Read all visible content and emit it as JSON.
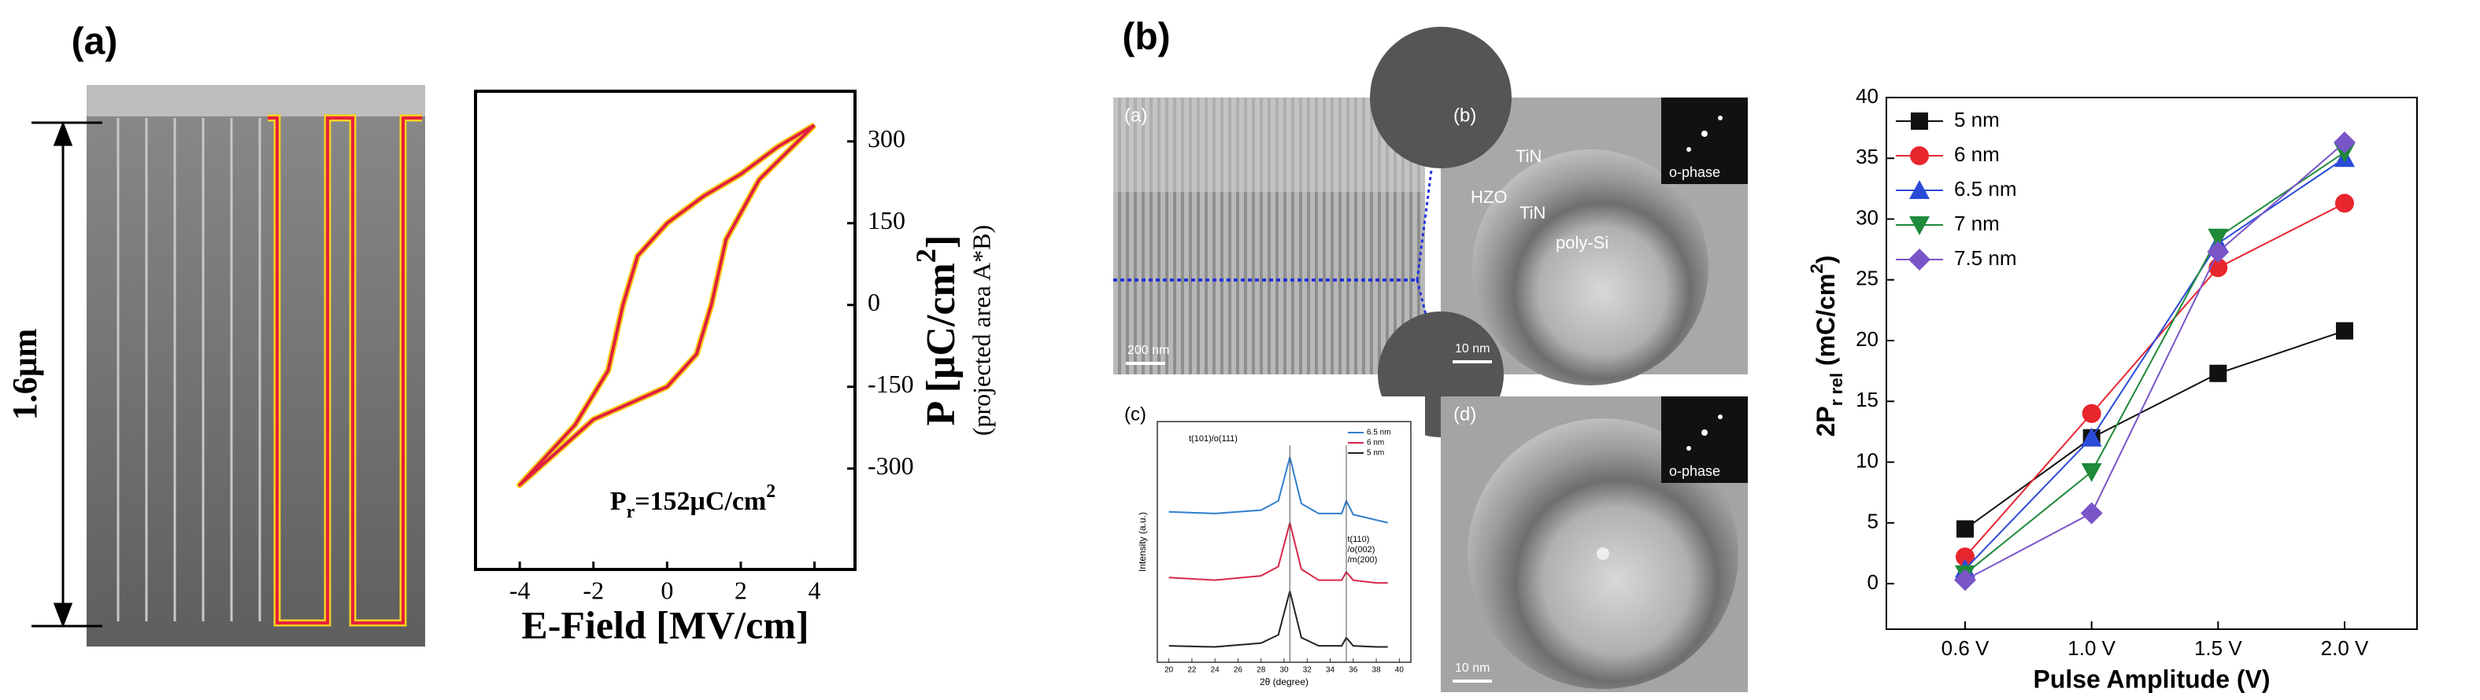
{
  "panel_labels": [
    "(a)",
    "(b)"
  ],
  "sem": {
    "scale_label": "1.6μm"
  },
  "tem": {
    "a": {
      "label": "(a)",
      "scale": "200 nm"
    },
    "b": {
      "label": "(b)",
      "layers": [
        "TiN",
        "HZO",
        "TiN",
        "poly-Si"
      ],
      "inset": "o-phase",
      "scale": "10 nm"
    },
    "d": {
      "label": "(d)",
      "inset": "o-phase",
      "scale": "10 nm"
    }
  },
  "chart_data": [
    {
      "type": "loop",
      "x_label": "E-Field [MV/cm]",
      "y_label": [
        "P [μC/cm",
        "2",
        "]"
      ],
      "y_sublabel": "(projected area A*B)",
      "annotation": [
        "P",
        "r",
        "=152μC/cm",
        "2"
      ],
      "xlim": [
        -5.2,
        5.1
      ],
      "ylim": [
        -485,
        392
      ],
      "xticks": [
        -4,
        -2,
        0,
        2,
        4
      ],
      "yticks": [
        -300,
        -150,
        0,
        150,
        300
      ],
      "y_axis_side": "right",
      "series": [
        {
          "color": "#e0203c",
          "x": [
            4,
            3,
            2,
            1,
            0,
            -0.8,
            -1.2,
            -1.6,
            -2.5,
            -4,
            -3,
            -2,
            -1,
            0,
            0.8,
            1.2,
            1.6,
            2.5,
            4
          ],
          "values": [
            330,
            290,
            240,
            200,
            150,
            90,
            0,
            -120,
            -220,
            -330,
            -270,
            -210,
            -180,
            -150,
            -90,
            0,
            120,
            230,
            330
          ]
        }
      ]
    },
    {
      "type": "line",
      "panel_label": "(c)",
      "x_label": "2θ (degree)",
      "y_label": "Intensity (a.u.)",
      "annotations": [
        "t(101)/o(111)",
        "t(110)",
        "/o(002)",
        "/m(200)"
      ],
      "xlim": [
        19,
        41
      ],
      "ylim": [
        0,
        4.4
      ],
      "xticks": [
        20,
        22,
        24,
        26,
        28,
        30,
        32,
        34,
        36,
        38,
        40
      ],
      "legend": "upper right",
      "series": [
        {
          "name": "6.5 nm",
          "color": "#2f7fd0",
          "x": [
            20,
            24,
            28,
            29.5,
            30.5,
            31.5,
            33,
            35,
            35.4,
            36,
            38,
            39
          ],
          "values": [
            2.75,
            2.72,
            2.78,
            2.95,
            3.75,
            2.9,
            2.72,
            2.72,
            2.95,
            2.7,
            2.6,
            2.55
          ]
        },
        {
          "name": "6 nm",
          "color": "#d8284a",
          "x": [
            20,
            24,
            28,
            29.5,
            30.5,
            31.5,
            33,
            35,
            35.4,
            36,
            38,
            39
          ],
          "values": [
            1.55,
            1.5,
            1.58,
            1.75,
            2.55,
            1.7,
            1.5,
            1.5,
            1.65,
            1.5,
            1.45,
            1.45
          ]
        },
        {
          "name": "5 nm",
          "color": "#222222",
          "x": [
            20,
            24,
            28,
            29.5,
            30.5,
            31.5,
            33,
            35,
            35.4,
            36,
            38,
            39
          ],
          "values": [
            0.3,
            0.28,
            0.35,
            0.5,
            1.3,
            0.45,
            0.3,
            0.3,
            0.45,
            0.3,
            0.28,
            0.28
          ]
        }
      ]
    },
    {
      "type": "line",
      "x_label": "Pulse Amplitude (V)",
      "y_label": [
        "2P",
        "r rel",
        " (mC/cm",
        "2",
        ")"
      ],
      "categories": [
        "0.6 V",
        "1.0 V",
        "1.5 V",
        "2.0 V"
      ],
      "ylim": [
        -3.75,
        40
      ],
      "yticks": [
        0,
        5,
        10,
        15,
        20,
        25,
        30,
        35,
        40
      ],
      "legend": "upper left",
      "series": [
        {
          "name": "5 nm",
          "color": "#111111",
          "marker": "square",
          "values": [
            4.5,
            12,
            17.3,
            20.8
          ]
        },
        {
          "name": "6 nm",
          "color": "#e8262e",
          "marker": "circle",
          "values": [
            2.2,
            14,
            26,
            31.3
          ]
        },
        {
          "name": "6.5 nm",
          "color": "#2a4bd8",
          "marker": "triangle-up",
          "values": [
            1.2,
            12,
            28,
            35
          ]
        },
        {
          "name": "7 nm",
          "color": "#1e8a3a",
          "marker": "triangle-down",
          "values": [
            0.8,
            9.2,
            28.5,
            35.5
          ]
        },
        {
          "name": "7.5 nm",
          "color": "#7a55c8",
          "marker": "diamond",
          "values": [
            0.3,
            5.8,
            27.3,
            36.3
          ]
        }
      ]
    }
  ]
}
